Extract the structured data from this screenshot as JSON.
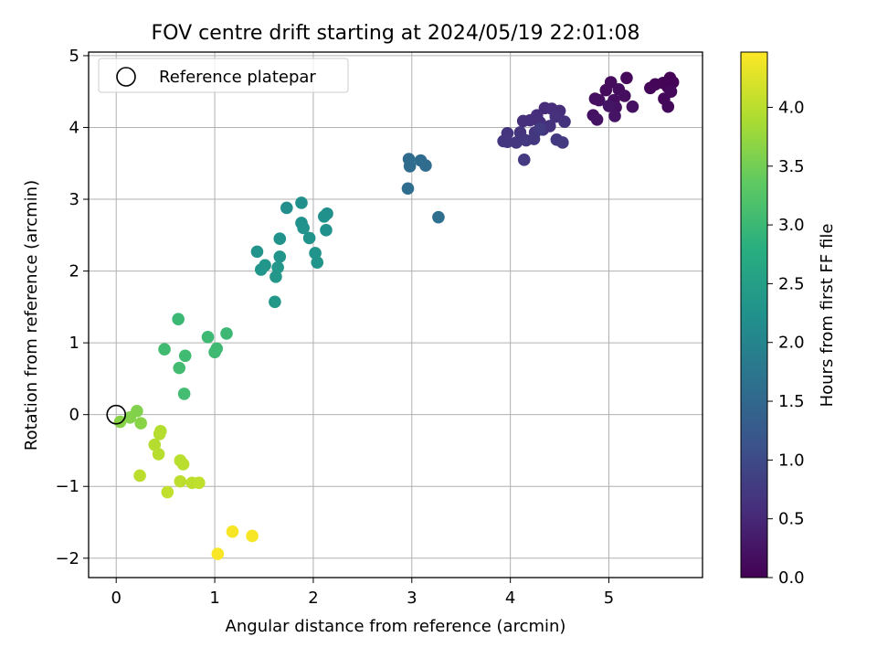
{
  "chart_data": {
    "type": "scatter",
    "title": "FOV centre drift starting at 2024/05/19 22:01:08",
    "xlabel": "Angular distance from reference (arcmin)",
    "ylabel": "Rotation from reference (arcmin)",
    "xlim": [
      -0.28,
      5.95
    ],
    "ylim": [
      -2.27,
      5.05
    ],
    "xticks": [
      0,
      1,
      2,
      3,
      4,
      5
    ],
    "yticks": [
      -2,
      -1,
      0,
      1,
      2,
      3,
      4,
      5
    ],
    "xtick_labels": [
      "0",
      "1",
      "2",
      "3",
      "4",
      "5"
    ],
    "ytick_labels": [
      "−2",
      "−1",
      "0",
      "1",
      "2",
      "3",
      "4",
      "5"
    ],
    "grid": true,
    "legend": {
      "placement": "top-left",
      "entries": [
        "Reference platepar"
      ]
    },
    "reference_point": {
      "x": 0,
      "y": 0,
      "marker": "hollow-circle"
    },
    "colorbar": {
      "label": "Hours from first FF file",
      "colormap": "viridis",
      "range": [
        0,
        4.47
      ],
      "ticks": [
        0,
        0.5,
        1,
        1.5,
        2,
        2.5,
        3,
        3.5,
        4
      ],
      "tick_labels": [
        "0.0",
        "0.5",
        "1.0",
        "1.5",
        "2.0",
        "2.5",
        "3.0",
        "3.5",
        "4.0"
      ]
    },
    "points": [
      {
        "x": 5.62,
        "y": 4.69,
        "c": 0.02
      },
      {
        "x": 5.65,
        "y": 4.63,
        "c": 0.03
      },
      {
        "x": 5.6,
        "y": 4.56,
        "c": 0.04
      },
      {
        "x": 5.55,
        "y": 4.62,
        "c": 0.05
      },
      {
        "x": 5.47,
        "y": 4.6,
        "c": 0.06
      },
      {
        "x": 5.42,
        "y": 4.55,
        "c": 0.07
      },
      {
        "x": 5.56,
        "y": 4.4,
        "c": 0.08
      },
      {
        "x": 5.6,
        "y": 4.29,
        "c": 0.09
      },
      {
        "x": 5.63,
        "y": 4.5,
        "c": 0.1
      },
      {
        "x": 5.18,
        "y": 4.69,
        "c": 0.12
      },
      {
        "x": 5.02,
        "y": 4.63,
        "c": 0.13
      },
      {
        "x": 4.97,
        "y": 4.52,
        "c": 0.14
      },
      {
        "x": 5.1,
        "y": 4.53,
        "c": 0.15
      },
      {
        "x": 5.16,
        "y": 4.44,
        "c": 0.16
      },
      {
        "x": 5.05,
        "y": 4.38,
        "c": 0.17
      },
      {
        "x": 4.9,
        "y": 4.38,
        "c": 0.18
      },
      {
        "x": 4.86,
        "y": 4.4,
        "c": 0.19
      },
      {
        "x": 5.07,
        "y": 4.28,
        "c": 0.2
      },
      {
        "x": 5.24,
        "y": 4.29,
        "c": 0.21
      },
      {
        "x": 4.84,
        "y": 4.17,
        "c": 0.22
      },
      {
        "x": 4.88,
        "y": 4.11,
        "c": 0.23
      },
      {
        "x": 5.06,
        "y": 4.16,
        "c": 0.24
      },
      {
        "x": 5.0,
        "y": 4.3,
        "c": 0.25
      },
      {
        "x": 4.35,
        "y": 4.27,
        "c": 0.55
      },
      {
        "x": 4.42,
        "y": 4.26,
        "c": 0.56
      },
      {
        "x": 4.5,
        "y": 4.23,
        "c": 0.57
      },
      {
        "x": 4.27,
        "y": 4.17,
        "c": 0.58
      },
      {
        "x": 4.2,
        "y": 4.1,
        "c": 0.59
      },
      {
        "x": 4.13,
        "y": 4.09,
        "c": 0.6
      },
      {
        "x": 4.3,
        "y": 4.07,
        "c": 0.61
      },
      {
        "x": 4.46,
        "y": 4.15,
        "c": 0.62
      },
      {
        "x": 4.55,
        "y": 4.08,
        "c": 0.63
      },
      {
        "x": 4.4,
        "y": 4.02,
        "c": 0.64
      },
      {
        "x": 4.33,
        "y": 3.97,
        "c": 0.65
      },
      {
        "x": 4.25,
        "y": 3.93,
        "c": 0.66
      },
      {
        "x": 4.1,
        "y": 3.93,
        "c": 0.67
      },
      {
        "x": 3.97,
        "y": 3.92,
        "c": 0.68
      },
      {
        "x": 3.93,
        "y": 3.81,
        "c": 0.69
      },
      {
        "x": 3.97,
        "y": 3.8,
        "c": 0.7
      },
      {
        "x": 4.06,
        "y": 3.79,
        "c": 0.71
      },
      {
        "x": 4.16,
        "y": 3.82,
        "c": 0.72
      },
      {
        "x": 4.24,
        "y": 3.84,
        "c": 0.73
      },
      {
        "x": 4.47,
        "y": 3.83,
        "c": 0.74
      },
      {
        "x": 4.53,
        "y": 3.79,
        "c": 0.75
      },
      {
        "x": 4.14,
        "y": 3.55,
        "c": 0.76
      },
      {
        "x": 4.3,
        "y": 3.98,
        "c": 0.77
      },
      {
        "x": 2.97,
        "y": 3.56,
        "c": 1.55
      },
      {
        "x": 3.09,
        "y": 3.54,
        "c": 1.56
      },
      {
        "x": 2.98,
        "y": 3.46,
        "c": 1.57
      },
      {
        "x": 3.14,
        "y": 3.47,
        "c": 1.58
      },
      {
        "x": 2.96,
        "y": 3.15,
        "c": 1.59
      },
      {
        "x": 3.27,
        "y": 2.75,
        "c": 1.6
      },
      {
        "x": 1.73,
        "y": 2.88,
        "c": 2.2
      },
      {
        "x": 1.88,
        "y": 2.95,
        "c": 2.21
      },
      {
        "x": 2.14,
        "y": 2.8,
        "c": 2.22
      },
      {
        "x": 2.11,
        "y": 2.76,
        "c": 2.23
      },
      {
        "x": 1.88,
        "y": 2.67,
        "c": 2.24
      },
      {
        "x": 1.9,
        "y": 2.6,
        "c": 2.25
      },
      {
        "x": 2.13,
        "y": 2.57,
        "c": 2.26
      },
      {
        "x": 1.96,
        "y": 2.46,
        "c": 2.27
      },
      {
        "x": 1.66,
        "y": 2.45,
        "c": 2.28
      },
      {
        "x": 1.43,
        "y": 2.27,
        "c": 2.29
      },
      {
        "x": 2.02,
        "y": 2.25,
        "c": 2.3
      },
      {
        "x": 1.66,
        "y": 2.2,
        "c": 2.31
      },
      {
        "x": 2.04,
        "y": 2.12,
        "c": 2.32
      },
      {
        "x": 1.51,
        "y": 2.08,
        "c": 2.33
      },
      {
        "x": 1.47,
        "y": 2.02,
        "c": 2.34
      },
      {
        "x": 1.64,
        "y": 2.05,
        "c": 2.35
      },
      {
        "x": 1.62,
        "y": 1.92,
        "c": 2.36
      },
      {
        "x": 1.61,
        "y": 1.57,
        "c": 2.37
      },
      {
        "x": 0.63,
        "y": 1.33,
        "c": 3.0
      },
      {
        "x": 1.12,
        "y": 1.13,
        "c": 3.01
      },
      {
        "x": 0.93,
        "y": 1.08,
        "c": 3.02
      },
      {
        "x": 1.02,
        "y": 0.92,
        "c": 3.03
      },
      {
        "x": 1.0,
        "y": 0.87,
        "c": 3.04
      },
      {
        "x": 0.49,
        "y": 0.91,
        "c": 3.05
      },
      {
        "x": 0.7,
        "y": 0.82,
        "c": 3.06
      },
      {
        "x": 0.64,
        "y": 0.65,
        "c": 3.07
      },
      {
        "x": 0.69,
        "y": 0.29,
        "c": 3.08
      },
      {
        "x": 0.21,
        "y": 0.05,
        "c": 3.6
      },
      {
        "x": 0.14,
        "y": -0.04,
        "c": 3.62
      },
      {
        "x": 0.04,
        "y": -0.1,
        "c": 3.64
      },
      {
        "x": 0.25,
        "y": -0.12,
        "c": 3.66
      },
      {
        "x": 0.45,
        "y": -0.23,
        "c": 3.95
      },
      {
        "x": 0.44,
        "y": -0.27,
        "c": 3.96
      },
      {
        "x": 0.39,
        "y": -0.42,
        "c": 3.97
      },
      {
        "x": 0.43,
        "y": -0.55,
        "c": 3.98
      },
      {
        "x": 0.65,
        "y": -0.64,
        "c": 3.99
      },
      {
        "x": 0.68,
        "y": -0.69,
        "c": 4.0
      },
      {
        "x": 0.24,
        "y": -0.85,
        "c": 4.01
      },
      {
        "x": 0.65,
        "y": -0.93,
        "c": 4.02
      },
      {
        "x": 0.77,
        "y": -0.95,
        "c": 4.03
      },
      {
        "x": 0.84,
        "y": -0.95,
        "c": 4.04
      },
      {
        "x": 0.52,
        "y": -1.08,
        "c": 4.05
      },
      {
        "x": 1.18,
        "y": -1.63,
        "c": 4.42
      },
      {
        "x": 1.38,
        "y": -1.69,
        "c": 4.43
      },
      {
        "x": 1.03,
        "y": -1.94,
        "c": 4.44
      }
    ]
  }
}
